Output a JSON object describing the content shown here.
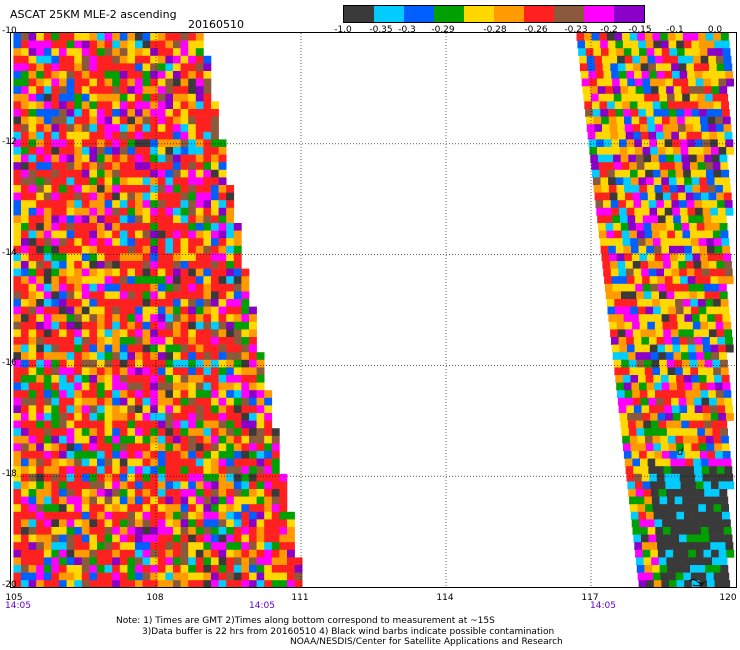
{
  "header": {
    "title": "ASCAT 25KM MLE-2 ascending",
    "date": "20160510"
  },
  "colorbar": {
    "colors": [
      "#3a3a3a",
      "#00ccff",
      "#0060ff",
      "#00a000",
      "#ffd800",
      "#ff9a00",
      "#ff2020",
      "#8b5a3c",
      "#ff00ff",
      "#8a00c8"
    ],
    "tick_labels": [
      "-1.0",
      "-0.35",
      "-0.3",
      "-0.29",
      "-0.28",
      "-0.26",
      "-0.23",
      "-0.2",
      "-0.15",
      "-0.1",
      "0.0"
    ]
  },
  "map": {
    "lat_labels": [
      "-10",
      "-12",
      "-14",
      "-16",
      "-18",
      "-20"
    ],
    "lon_labels": [
      "105",
      "108",
      "111",
      "114",
      "117",
      "120"
    ],
    "lat_range": [
      -20,
      -10
    ],
    "lon_range": [
      105,
      120
    ],
    "time_labels": [
      "14:05",
      "14:05",
      "14:05"
    ],
    "rain_flag_symbol": "d",
    "swaths": [
      {
        "name": "left-swath",
        "top_lon": [
          105.05,
          108.9
        ],
        "bottom_lon": [
          105.05,
          111.0
        ]
      },
      {
        "name": "right-swath",
        "top_lon": [
          116.7,
          119.8
        ],
        "bottom_lon": [
          118.0,
          119.8
        ]
      }
    ]
  },
  "notes": {
    "line1": "Note: 1) Times are GMT 2)Times along bottom correspond to measurement at ~15S",
    "line2": "3)Data buffer is 22 hrs from 20160510 4) Black wind barbs indicate possible contamination",
    "line3": "NOAA/NESDIS/Center for Satellite Applications and Research"
  }
}
